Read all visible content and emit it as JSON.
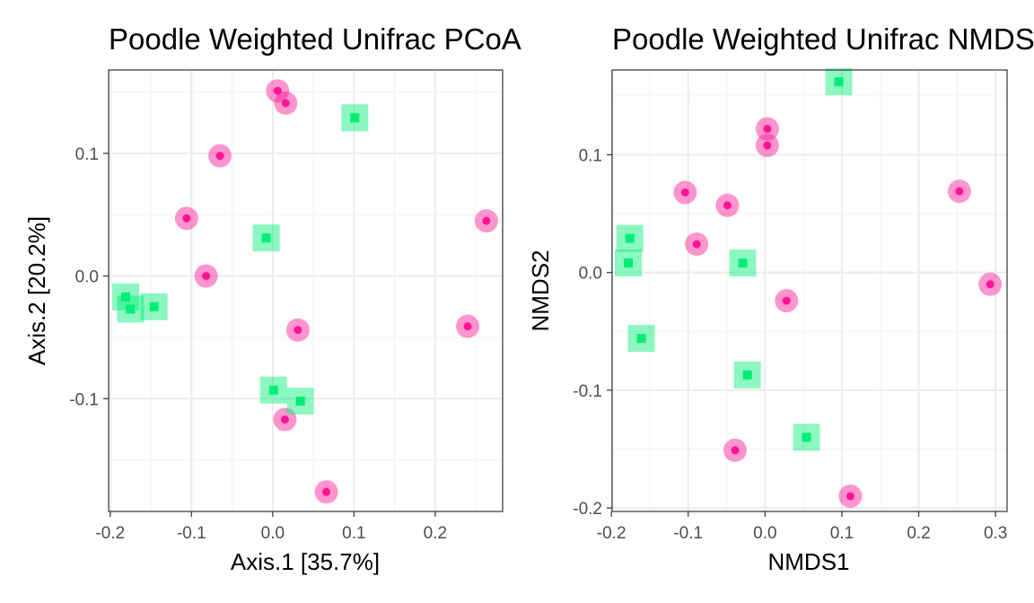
{
  "chart_data": [
    {
      "type": "scatter",
      "title": "Poodle Weighted Unifrac PCoA",
      "xlabel": "Axis.1   [35.7%]",
      "ylabel": "Axis.2   [20.2%]",
      "xlim": [
        -0.202,
        0.283
      ],
      "ylim": [
        -0.192,
        0.168
      ],
      "xticks": [
        -0.2,
        -0.1,
        0.0,
        0.1,
        0.2
      ],
      "yticks": [
        -0.1,
        0.0,
        0.1
      ],
      "xtick_labels": [
        "-0.2",
        "-0.1",
        "0.0",
        "0.1",
        "0.2"
      ],
      "ytick_labels": [
        "-0.1",
        "0.0",
        "0.1"
      ],
      "grid": true,
      "series": [
        {
          "marker": "circle",
          "color": "#ff1493",
          "x": [
            0.006,
            0.016,
            -0.065,
            -0.106,
            -0.082,
            0.031,
            0.015,
            0.066,
            0.263,
            0.24
          ],
          "y": [
            0.151,
            0.141,
            0.098,
            0.047,
            0.0,
            -0.044,
            -0.117,
            -0.176,
            0.045,
            -0.041
          ]
        },
        {
          "marker": "square",
          "color": "#00ee76",
          "x": [
            0.101,
            -0.008,
            -0.181,
            -0.175,
            -0.146,
            0.001,
            0.034
          ],
          "y": [
            0.129,
            0.031,
            -0.017,
            -0.027,
            -0.025,
            -0.093,
            -0.102
          ]
        }
      ]
    },
    {
      "type": "scatter",
      "title": "Poodle Weighted Unifrac NMDS",
      "xlabel": "NMDS1",
      "ylabel": "NMDS2",
      "xlim": [
        -0.199,
        0.315
      ],
      "ylim": [
        -0.203,
        0.172
      ],
      "xticks": [
        -0.2,
        -0.1,
        0.0,
        0.1,
        0.2,
        0.3
      ],
      "yticks": [
        -0.2,
        -0.1,
        0.0,
        0.1
      ],
      "xtick_labels": [
        "-0.2",
        "-0.1",
        "0.0",
        "0.1",
        "0.2",
        "0.3"
      ],
      "ytick_labels": [
        "-0.2",
        "-0.1",
        "0.0",
        "0.1"
      ],
      "grid": true,
      "series": [
        {
          "marker": "circle",
          "color": "#ff1493",
          "x": [
            0.003,
            0.003,
            -0.104,
            -0.049,
            -0.089,
            0.028,
            0.253,
            0.293,
            -0.039,
            0.111
          ],
          "y": [
            0.122,
            0.108,
            0.068,
            0.057,
            0.024,
            -0.024,
            0.069,
            -0.01,
            -0.151,
            -0.19
          ]
        },
        {
          "marker": "square",
          "color": "#00ee76",
          "x": [
            0.096,
            -0.176,
            -0.178,
            -0.029,
            -0.161,
            -0.023,
            0.054
          ],
          "y": [
            0.162,
            0.029,
            0.008,
            0.008,
            -0.056,
            -0.087,
            -0.14
          ]
        }
      ]
    }
  ]
}
